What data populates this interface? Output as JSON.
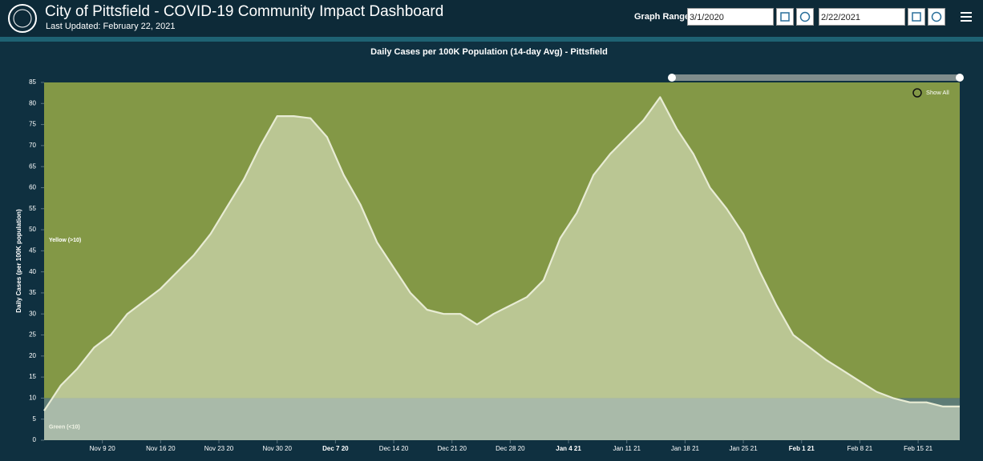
{
  "header": {
    "title": "City of Pittsfield - COVID-19 Community Impact Dashboard",
    "updated": "Last Updated: February 22, 2021",
    "range_label": "Graph Range",
    "start": "3/1/2020",
    "end": "2/22/2021"
  },
  "chart_data": {
    "type": "area",
    "title": "Daily Cases per 100K Population (14-day Avg) - Pittsfield",
    "y_label": "Daily Cases (per 100K population)",
    "zoom_button": "Show All",
    "x": [
      "2020-11-02",
      "2020-11-04",
      "2020-11-06",
      "2020-11-08",
      "2020-11-10",
      "2020-11-12",
      "2020-11-14",
      "2020-11-16",
      "2020-11-18",
      "2020-11-20",
      "2020-11-22",
      "2020-11-24",
      "2020-11-26",
      "2020-11-28",
      "2020-11-30",
      "2020-12-02",
      "2020-12-04",
      "2020-12-06",
      "2020-12-08",
      "2020-12-10",
      "2020-12-12",
      "2020-12-14",
      "2020-12-16",
      "2020-12-18",
      "2020-12-20",
      "2020-12-22",
      "2020-12-24",
      "2020-12-26",
      "2020-12-28",
      "2020-12-30",
      "2021-01-01",
      "2021-01-03",
      "2021-01-05",
      "2021-01-07",
      "2021-01-09",
      "2021-01-11",
      "2021-01-13",
      "2021-01-15",
      "2021-01-17",
      "2021-01-19",
      "2021-01-21",
      "2021-01-23",
      "2021-01-25",
      "2021-01-27",
      "2021-01-29",
      "2021-01-31",
      "2021-02-02",
      "2021-02-04",
      "2021-02-06",
      "2021-02-08",
      "2021-02-10",
      "2021-02-12",
      "2021-02-14",
      "2021-02-16",
      "2021-02-18",
      "2021-02-20"
    ],
    "values": [
      7,
      13,
      17,
      22,
      25,
      30,
      33,
      36,
      40,
      44,
      49,
      55.5,
      62,
      70,
      77,
      77,
      76.5,
      72,
      63,
      56,
      47,
      41,
      35,
      31,
      30,
      30,
      27.5,
      30,
      32,
      34,
      38,
      48,
      54,
      63,
      68,
      72,
      76,
      81.5,
      74,
      68,
      60,
      55,
      49,
      40,
      32,
      25,
      22,
      19,
      16.5,
      14,
      11.5,
      10,
      9,
      9,
      8,
      8
    ],
    "color": "#e8ecd4",
    "xlim": [
      "2020-11-02",
      "2021-02-20"
    ],
    "xticks": [
      {
        "value": "2020-11-09",
        "label": "Nov 9 20"
      },
      {
        "value": "2020-11-16",
        "label": "Nov 16 20"
      },
      {
        "value": "2020-11-23",
        "label": "Nov 23 20"
      },
      {
        "value": "2020-11-30",
        "label": "Nov 30 20"
      },
      {
        "value": "2020-12-07",
        "label": "Dec 7 20",
        "bold": true
      },
      {
        "value": "2020-12-14",
        "label": "Dec 14 20"
      },
      {
        "value": "2020-12-21",
        "label": "Dec 21 20"
      },
      {
        "value": "2020-12-28",
        "label": "Dec 28 20"
      },
      {
        "value": "2021-01-04",
        "label": "Jan 4 21",
        "bold": true
      },
      {
        "value": "2021-01-11",
        "label": "Jan 11 21"
      },
      {
        "value": "2021-01-18",
        "label": "Jan 18 21"
      },
      {
        "value": "2021-01-25",
        "label": "Jan 25 21"
      },
      {
        "value": "2021-02-01",
        "label": "Feb 1 21",
        "bold": true
      },
      {
        "value": "2021-02-08",
        "label": "Feb 8 21"
      },
      {
        "value": "2021-02-15",
        "label": "Feb 15 21"
      }
    ],
    "ylim": [
      0,
      85
    ],
    "yticks": [
      0,
      5,
      10,
      15,
      20,
      25,
      30,
      35,
      40,
      45,
      50,
      55,
      60,
      65,
      70,
      75,
      80,
      85
    ],
    "zones": [
      {
        "label": "Green (<10)",
        "from": 0,
        "to": 10,
        "color": "#5e7c76"
      },
      {
        "label": "Yellow (>10)",
        "from": 10,
        "to": 85,
        "color": "#839846"
      }
    ]
  }
}
